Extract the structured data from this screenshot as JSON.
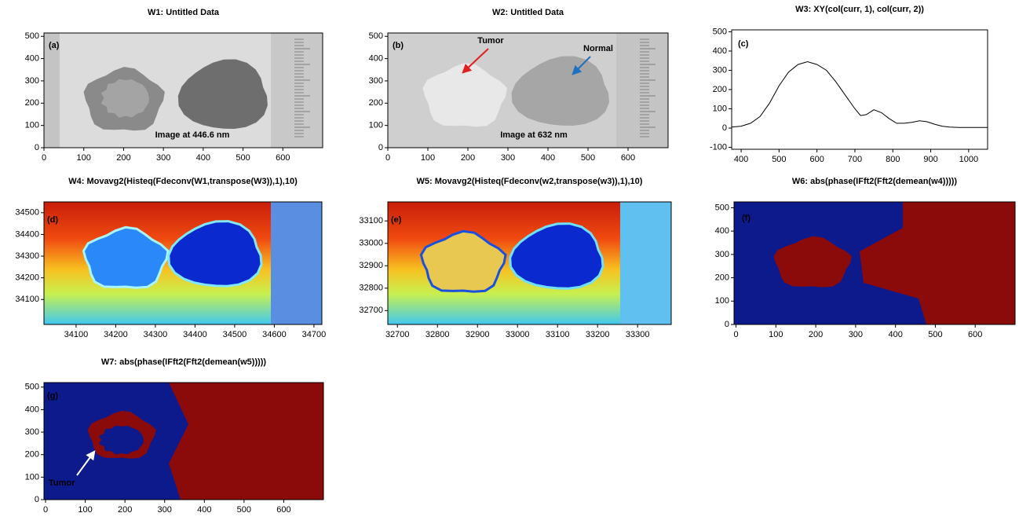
{
  "chart_data": [
    {
      "type": "image",
      "title": "W1: Untitled Data",
      "annotations": [
        "(a)",
        "Image at 446.6 nm"
      ],
      "xlim": [
        0,
        700
      ],
      "xticks": [
        0,
        100,
        200,
        300,
        400,
        500,
        600
      ],
      "ylim": [
        0,
        515
      ],
      "yticks": [
        0,
        100,
        200,
        300,
        400,
        500
      ]
    },
    {
      "type": "image",
      "title": "W2: Untitled Data",
      "annotations": [
        "(b)",
        "Tumor",
        "Normal",
        "Image at 632 nm"
      ],
      "xlim": [
        0,
        700
      ],
      "xticks": [
        0,
        100,
        200,
        300,
        400,
        500,
        600
      ],
      "ylim": [
        0,
        515
      ],
      "yticks": [
        0,
        100,
        200,
        300,
        400,
        500
      ]
    },
    {
      "type": "line",
      "title": "W3: XY(col(curr, 1), col(curr, 2))",
      "annotations": [
        "(c)"
      ],
      "color": "#000000",
      "x": [
        375,
        400,
        425,
        450,
        475,
        500,
        525,
        550,
        575,
        600,
        625,
        650,
        675,
        700,
        715,
        730,
        750,
        770,
        790,
        810,
        830,
        850,
        870,
        890,
        910,
        930,
        950,
        975,
        1000,
        1050
      ],
      "values": [
        5,
        10,
        25,
        60,
        130,
        220,
        290,
        330,
        345,
        330,
        300,
        240,
        170,
        100,
        65,
        70,
        95,
        80,
        50,
        25,
        25,
        30,
        38,
        33,
        20,
        10,
        5,
        3,
        3,
        3
      ],
      "xlim": [
        375,
        1050
      ],
      "xticks": [
        400,
        500,
        600,
        700,
        800,
        900,
        1000
      ],
      "ylim": [
        -110,
        510
      ],
      "yticks": [
        -100,
        0,
        100,
        200,
        300,
        400,
        500
      ]
    },
    {
      "type": "image",
      "title": "W4: Movavg2(Histeq(Fdeconv(W1,transpose(W3)),1),10)",
      "annotations": [
        "(d)"
      ],
      "xlim": [
        34019,
        34720
      ],
      "xticks": [
        34100,
        34200,
        34300,
        34400,
        34500,
        34600,
        34700
      ],
      "ylim": [
        33985,
        34550
      ],
      "yticks": [
        34100,
        34200,
        34300,
        34400,
        34500
      ]
    },
    {
      "type": "image",
      "title": "W5: Movavg2(Histeq(Fdeconv(w2,transpose(w3)),1),10)",
      "annotations": [
        "(e)"
      ],
      "xlim": [
        32676,
        33384
      ],
      "xticks": [
        32700,
        32800,
        32900,
        33000,
        33100,
        33200,
        33300
      ],
      "ylim": [
        32638,
        33185
      ],
      "yticks": [
        32700,
        32800,
        32900,
        33000,
        33100
      ]
    },
    {
      "type": "image",
      "title": "W6: abs(phase(IFft2(Fft2(demean(w4)))))",
      "annotations": [
        "(f)"
      ],
      "xlim": [
        -5,
        700
      ],
      "xticks": [
        0,
        100,
        200,
        300,
        400,
        500,
        600
      ],
      "ylim": [
        0,
        525
      ],
      "yticks": [
        0,
        100,
        200,
        300,
        400,
        500
      ]
    },
    {
      "type": "image",
      "title": "W7: abs(phase(IFft2(Fft2(demean(w5)))))",
      "annotations": [
        "(g)",
        "Tumor"
      ],
      "xlim": [
        -4,
        700
      ],
      "xticks": [
        0,
        100,
        200,
        300,
        400,
        500,
        600
      ],
      "ylim": [
        0,
        520
      ],
      "yticks": [
        0,
        100,
        200,
        300,
        400,
        500
      ]
    }
  ]
}
